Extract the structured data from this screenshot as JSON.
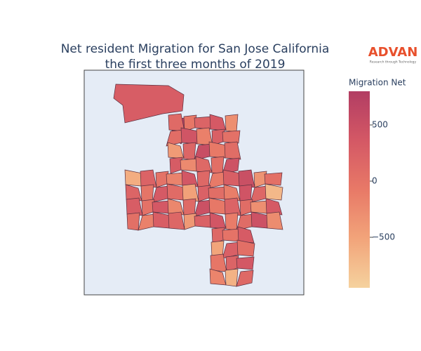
{
  "chart_data": {
    "type": "choropleth",
    "title": [
      "Net resident Migration for San Jose California",
      "the first three months of 2019"
    ],
    "logo": {
      "name": "ADVAN",
      "tagline": "Research through Technology"
    },
    "colorbar": {
      "title": "Migration Net",
      "clim": [
        -950,
        800
      ],
      "ticks": [
        500,
        0,
        {
          "value": -500,
          "label": "−500"
        }
      ],
      "colorscale": [
        "#f5d29e",
        "#f2a47a",
        "#e87967",
        "#d45865",
        "#b23d63"
      ]
    },
    "values": [
      300,
      750,
      120,
      -50,
      200,
      350,
      -300,
      80,
      410,
      -150,
      260,
      30,
      -420,
      180,
      520,
      -80,
      90,
      310,
      -250,
      140,
      60,
      450,
      -600,
      220,
      10,
      -180,
      380,
      150,
      -90,
      270,
      500,
      -350,
      40,
      190,
      -20,
      330,
      110,
      -480,
      240,
      70,
      -130,
      420,
      160,
      -700,
      290,
      20,
      360,
      -220,
      130,
      480,
      -60,
      210,
      90,
      -300,
      340,
      50,
      -160,
      280,
      170,
      -400,
      230,
      390,
      -110,
      100,
      460,
      -270,
      150,
      0,
      320,
      -520,
      250,
      60,
      -40,
      200,
      370,
      -190,
      -650,
      140,
      300,
      -80
    ]
  }
}
